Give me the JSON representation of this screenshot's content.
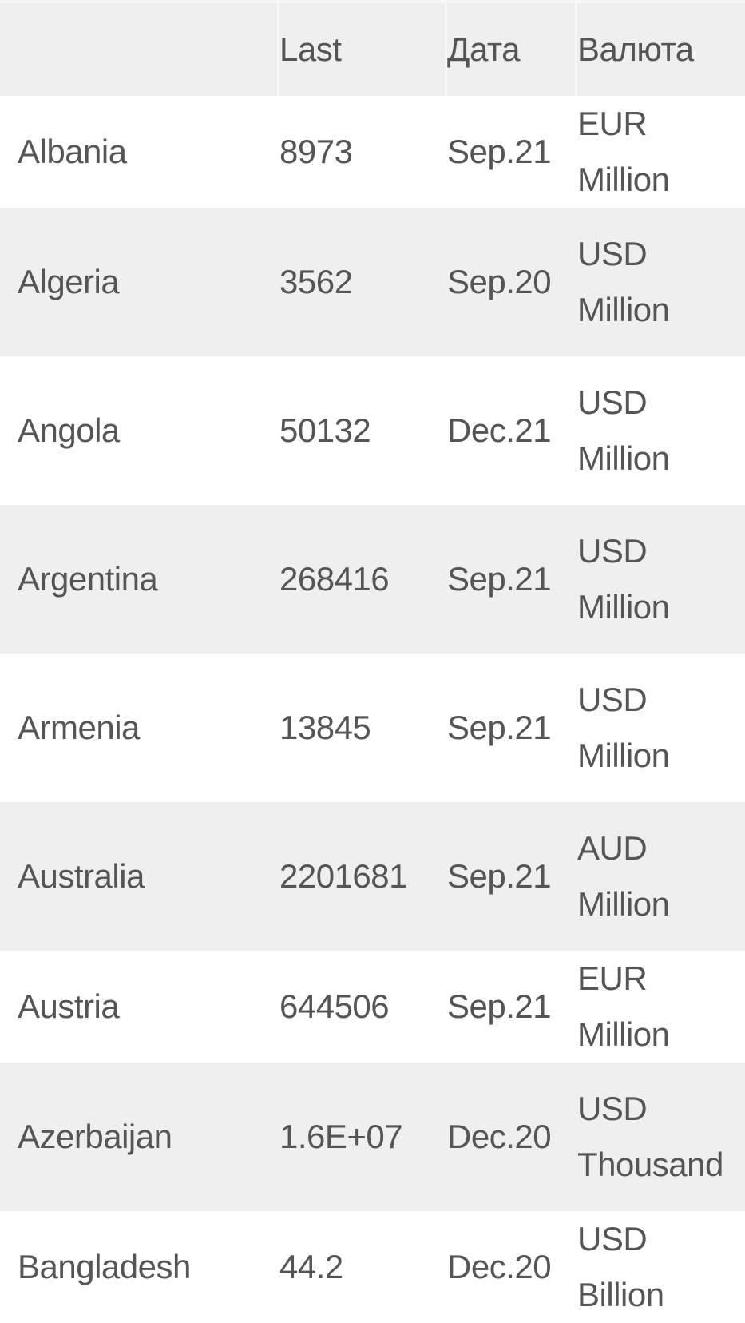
{
  "table": {
    "headers": {
      "country": "",
      "last": "Last",
      "date": "Дата",
      "currency": "Валюта"
    },
    "rows": [
      {
        "country": "Albania",
        "last": "8973",
        "date": "Sep.21",
        "currency": "EUR Million"
      },
      {
        "country": "Algeria",
        "last": "3562",
        "date": "Sep.20",
        "currency": "USD Million"
      },
      {
        "country": "Angola",
        "last": "50132",
        "date": "Dec.21",
        "currency": "USD Million"
      },
      {
        "country": "Argentina",
        "last": "268416",
        "date": "Sep.21",
        "currency": "USD Million"
      },
      {
        "country": "Armenia",
        "last": "13845",
        "date": "Sep.21",
        "currency": "USD Million"
      },
      {
        "country": "Australia",
        "last": "2201681",
        "date": "Sep.21",
        "currency": "AUD Million"
      },
      {
        "country": "Austria",
        "last": "644506",
        "date": "Sep.21",
        "currency": "EUR Million"
      },
      {
        "country": "Azerbaijan",
        "last": "1.6E+07",
        "date": "Dec.20",
        "currency": "USD Thousand"
      },
      {
        "country": "Bangladesh",
        "last": "44.2",
        "date": "Dec.20",
        "currency": "USD Billion"
      }
    ]
  }
}
